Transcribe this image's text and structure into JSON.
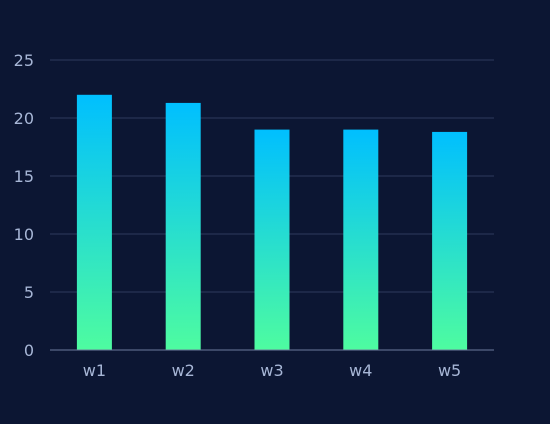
{
  "chart_data": {
    "type": "bar",
    "categories": [
      "w1",
      "w2",
      "w3",
      "w4",
      "w5"
    ],
    "values": [
      22.0,
      21.3,
      19.0,
      19.0,
      18.8
    ],
    "yticks": [
      "0",
      "5",
      "10",
      "15",
      "20",
      "25"
    ],
    "ylim": [
      0,
      25
    ],
    "title": "",
    "xlabel": "",
    "ylabel": "",
    "grid": true,
    "colors": {
      "background": "#0c1633",
      "bar_top": "#00bfff",
      "bar_bottom": "#4efca0",
      "grid": "#2e3a5c",
      "axis": "#6d7a9c",
      "tick_label": "#a7b6d6"
    }
  }
}
